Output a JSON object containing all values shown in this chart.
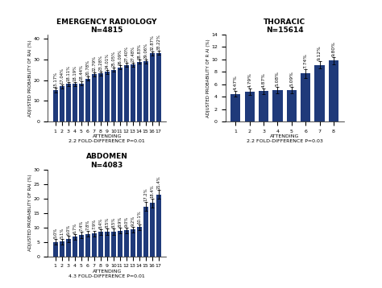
{
  "er": {
    "title": "EMERGENCY RADIOLOGY",
    "subtitle": "N=4815",
    "xlabel": "ATTENDING\n2.2 FOLD-DIFFERENCE P=0.01",
    "ylabel": "ADJUSTED PROBABILITY OF RAI (%)",
    "categories": [
      1,
      2,
      3,
      4,
      5,
      6,
      7,
      8,
      9,
      10,
      11,
      12,
      13,
      14,
      15,
      16,
      17
    ],
    "values": [
      15.17,
      17.04,
      18.11,
      18.19,
      18.44,
      20.78,
      22.79,
      23.28,
      24.01,
      25.05,
      26.09,
      27.4,
      27.48,
      28.83,
      29.06,
      32.87,
      33.22
    ],
    "errors": [
      1.0,
      1.0,
      1.0,
      1.0,
      1.0,
      1.0,
      1.0,
      1.0,
      1.0,
      1.0,
      1.0,
      1.0,
      1.0,
      1.0,
      1.0,
      1.0,
      1.0
    ],
    "bar_color": "#1f3a7a",
    "ylim": [
      0,
      42
    ],
    "label_rotation": 90,
    "label_fontsize": 4.5
  },
  "thoracic": {
    "title": "THORACIC",
    "subtitle": "N=15614",
    "xlabel": "ATTENDING\n2.2 FOLD-DIFFERENCE P=0.03",
    "ylabel": "ADJUSTED PROBABILITY OF R AI (%)",
    "categories": [
      1,
      2,
      3,
      4,
      5,
      6,
      7,
      8
    ],
    "values": [
      4.47,
      4.79,
      4.87,
      5.08,
      5.09,
      7.74,
      9.12,
      9.8
    ],
    "errors": [
      0.5,
      0.5,
      0.5,
      0.5,
      0.5,
      0.7,
      0.6,
      0.6
    ],
    "bar_color": "#1f3a7a",
    "ylim": [
      0,
      14
    ],
    "label_rotation": 90,
    "label_fontsize": 5.5
  },
  "abdomen": {
    "title": "ABDOMEN",
    "subtitle": "N=4083",
    "xlabel": "ATTENDING\n4.3 FOLD-DIFFERENCE P=0.01",
    "ylabel": "ADJUSTED PROBABILITY OF RAI (%)",
    "categories": [
      1,
      2,
      3,
      4,
      5,
      6,
      7,
      8,
      9,
      10,
      11,
      12,
      13,
      14,
      15,
      16,
      17
    ],
    "values": [
      5.0,
      5.1,
      6.0,
      6.7,
      7.4,
      7.8,
      7.9,
      8.4,
      8.5,
      8.5,
      8.9,
      9.0,
      9.2,
      10.1,
      17.2,
      18.4,
      21.4
    ],
    "errors": [
      1.0,
      1.0,
      1.0,
      1.0,
      1.0,
      1.0,
      1.0,
      1.0,
      1.0,
      1.0,
      1.0,
      1.0,
      1.0,
      1.0,
      1.5,
      1.5,
      1.5
    ],
    "bar_color": "#1f3a7a",
    "ylim": [
      0,
      30
    ],
    "label_rotation": 90,
    "label_fontsize": 4.5
  }
}
